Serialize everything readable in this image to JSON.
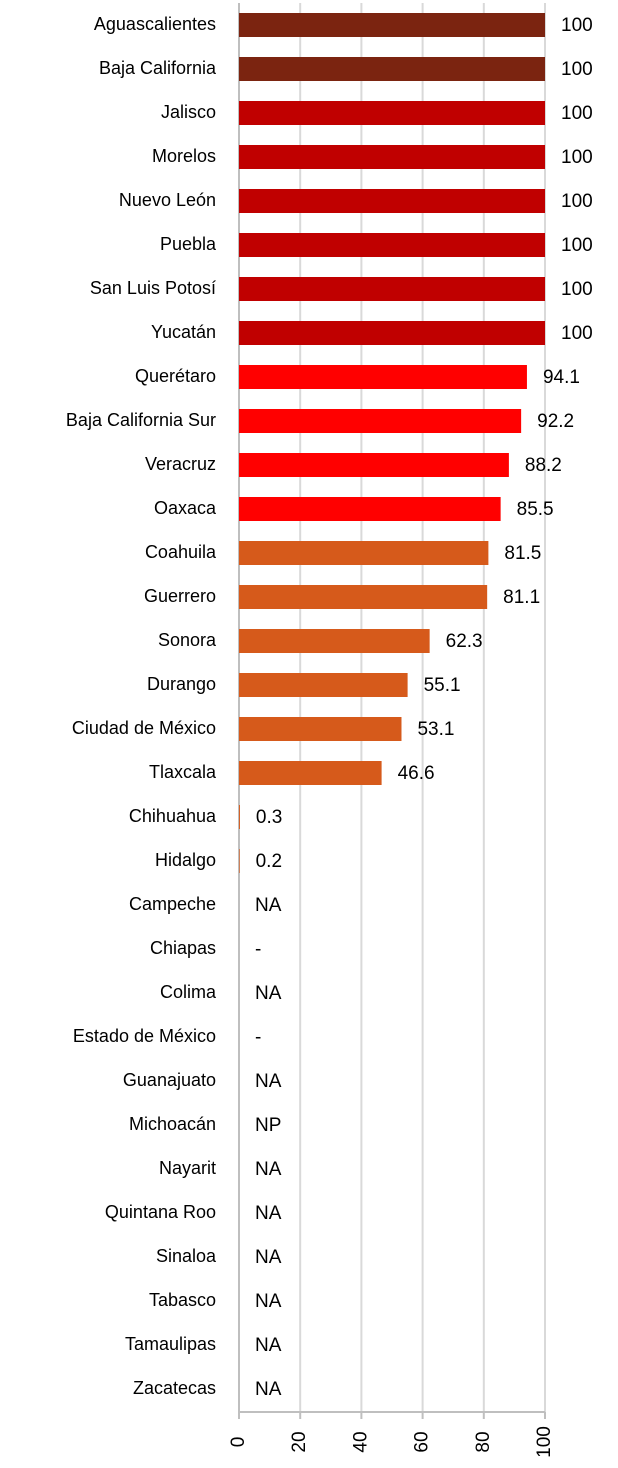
{
  "chart_data": {
    "type": "bar",
    "orientation": "horizontal",
    "categories": [
      "Aguascalientes",
      "Baja California",
      "Jalisco",
      "Morelos",
      "Nuevo León",
      "Puebla",
      "San Luis Potosí",
      "Yucatán",
      "Querétaro",
      "Baja California Sur",
      "Veracruz",
      "Oaxaca",
      "Coahuila",
      "Guerrero",
      "Sonora",
      "Durango",
      "Ciudad de México",
      "Tlaxcala",
      "Chihuahua",
      "Hidalgo",
      "Campeche",
      "Chiapas",
      "Colima",
      "Estado de México",
      "Guanajuato",
      "Michoacán",
      "Nayarit",
      "Quintana Roo",
      "Sinaloa",
      "Tabasco",
      "Tamaulipas",
      "Zacatecas"
    ],
    "values": [
      100,
      100,
      100,
      100,
      100,
      100,
      100,
      100,
      94.1,
      92.2,
      88.2,
      85.5,
      81.5,
      81.1,
      62.3,
      55.1,
      53.1,
      46.6,
      0.3,
      0.2,
      null,
      null,
      null,
      null,
      null,
      null,
      null,
      null,
      null,
      null,
      null,
      null
    ],
    "value_labels": [
      "100",
      "100",
      "100",
      "100",
      "100",
      "100",
      "100",
      "100",
      "94.1",
      "92.2",
      "88.2",
      "85.5",
      "81.5",
      "81.1",
      "62.3",
      "55.1",
      "53.1",
      "46.6",
      "0.3",
      "0.2",
      "NA",
      "-",
      "NA",
      "-",
      "NA",
      "NP",
      "NA",
      "NA",
      "NA",
      "NA",
      "NA",
      "NA"
    ],
    "colors": [
      "#7b2410",
      "#7b2410",
      "#c00000",
      "#c00000",
      "#c00000",
      "#c00000",
      "#c00000",
      "#c00000",
      "#ff0000",
      "#ff0000",
      "#ff0000",
      "#ff0000",
      "#d65a1b",
      "#d65a1b",
      "#d65a1b",
      "#d65a1b",
      "#d65a1b",
      "#d65a1b",
      "#d65a1b",
      "#d65a1b",
      null,
      null,
      null,
      null,
      null,
      null,
      null,
      null,
      null,
      null,
      null,
      null
    ],
    "xlim": [
      0,
      100
    ],
    "xticks": [
      0,
      20,
      40,
      60,
      80,
      100
    ],
    "grid": true
  }
}
